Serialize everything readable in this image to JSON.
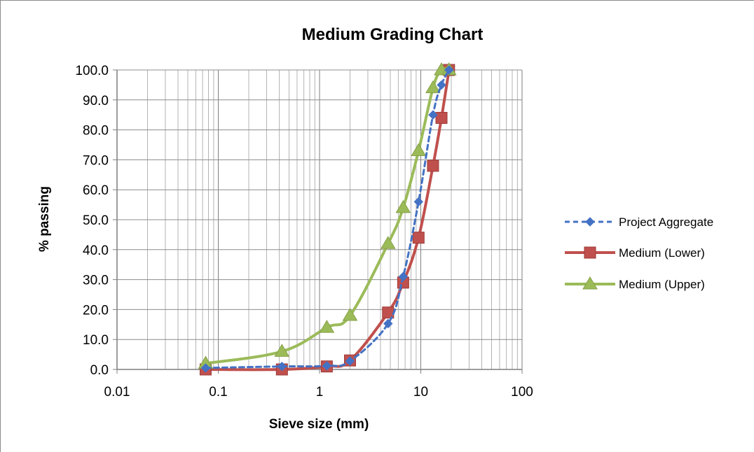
{
  "chart_data": {
    "type": "scatter",
    "title": "Medium Grading Chart",
    "xlabel": "Sieve size (mm)",
    "ylabel": "% passing",
    "xscale": "log",
    "xlim": [
      0.01,
      100
    ],
    "ylim": [
      0,
      100
    ],
    "x_ticks": [
      {
        "value": 0.01,
        "label": "0.01"
      },
      {
        "value": 0.1,
        "label": "0.1"
      },
      {
        "value": 1,
        "label": "1"
      },
      {
        "value": 10,
        "label": "10"
      },
      {
        "value": 100,
        "label": "100"
      }
    ],
    "y_ticks": [
      {
        "value": 0,
        "label": "0.0"
      },
      {
        "value": 10,
        "label": "10.0"
      },
      {
        "value": 20,
        "label": "20.0"
      },
      {
        "value": 30,
        "label": "30.0"
      },
      {
        "value": 40,
        "label": "40.0"
      },
      {
        "value": 50,
        "label": "50.0"
      },
      {
        "value": 60,
        "label": "60.0"
      },
      {
        "value": 70,
        "label": "70.0"
      },
      {
        "value": 80,
        "label": "80.0"
      },
      {
        "value": 90,
        "label": "90.0"
      },
      {
        "value": 100,
        "label": "100.0"
      }
    ],
    "grid": true,
    "legend_position": "right",
    "series": [
      {
        "name": "Project Aggregate",
        "color": "#4472c4",
        "marker": "diamond",
        "line": "dashed",
        "points": [
          [
            0.075,
            0.5
          ],
          [
            0.425,
            1.0
          ],
          [
            1.18,
            1.2
          ],
          [
            2.0,
            2.8
          ],
          [
            4.75,
            15.3
          ],
          [
            6.7,
            31.0
          ],
          [
            9.5,
            56.0
          ],
          [
            13.2,
            85.0
          ],
          [
            16.0,
            95.0
          ],
          [
            19.0,
            100.0
          ]
        ]
      },
      {
        "name": "Medium (Lower)",
        "color": "#c0504d",
        "marker": "square",
        "line": "solid",
        "points": [
          [
            0.075,
            0.0
          ],
          [
            0.425,
            0.0
          ],
          [
            1.18,
            1.0
          ],
          [
            2.0,
            3.0
          ],
          [
            4.75,
            19.0
          ],
          [
            6.7,
            29.0
          ],
          [
            9.5,
            44.0
          ],
          [
            13.2,
            68.0
          ],
          [
            16.0,
            84.0
          ],
          [
            19.0,
            100.0
          ]
        ]
      },
      {
        "name": "Medium (Upper)",
        "color": "#9bbb59",
        "marker": "triangle",
        "line": "solid",
        "points": [
          [
            0.075,
            2.0
          ],
          [
            0.425,
            6.0
          ],
          [
            1.18,
            14.0
          ],
          [
            2.0,
            18.0
          ],
          [
            4.75,
            42.0
          ],
          [
            6.7,
            54.0
          ],
          [
            9.5,
            73.0
          ],
          [
            13.2,
            94.0
          ],
          [
            16.0,
            100.0
          ],
          [
            19.0,
            100.0
          ]
        ]
      }
    ]
  }
}
